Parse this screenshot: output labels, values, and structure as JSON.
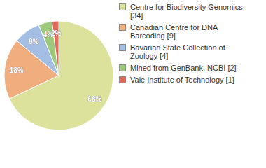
{
  "chart_data": {
    "type": "pie",
    "categories": [
      "Centre for Biodiversity Genomics [34]",
      "Canadian Centre for DNA Barcoding [9]",
      "Bavarian State Collection of Zoology [4]",
      "Mined from GenBank, NCBI [2]",
      "Vale Institute of Technology [1]"
    ],
    "values": [
      68,
      18,
      8,
      4,
      2
    ],
    "value_labels": [
      "68%",
      "18%",
      "8%",
      "4%",
      "2%"
    ],
    "colors": [
      "#dce29c",
      "#f0ad7e",
      "#a3bde3",
      "#9ec97c",
      "#e0695a"
    ],
    "data_labels": true,
    "legend": "right"
  }
}
